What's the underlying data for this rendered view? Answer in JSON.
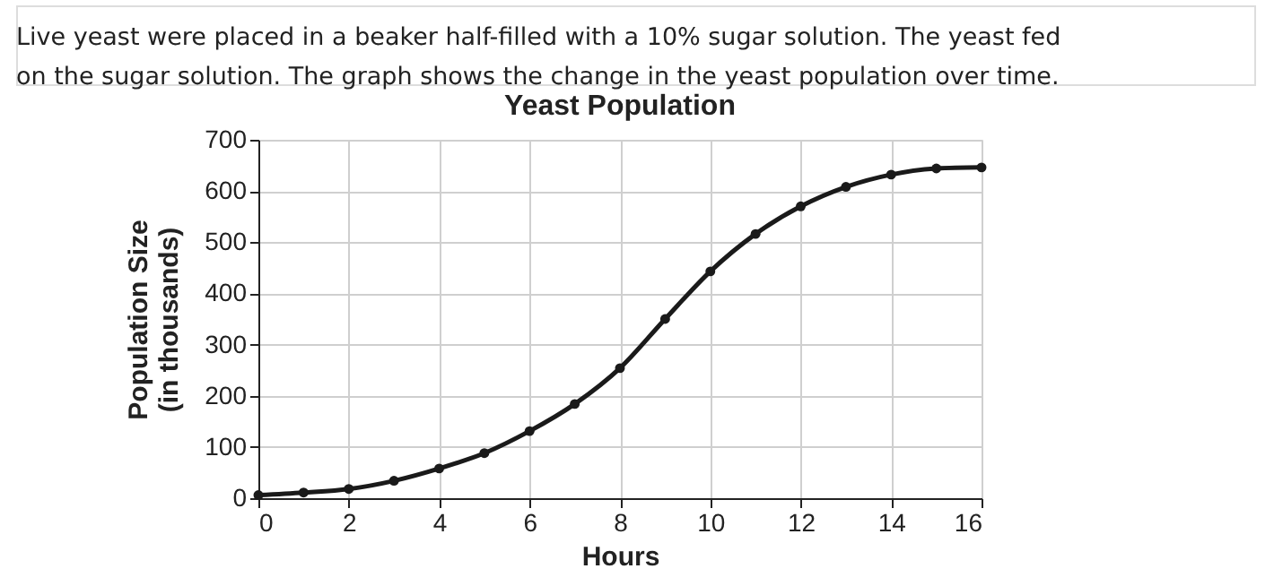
{
  "chart_data": {
    "type": "line",
    "title": "Yeast Population",
    "annotations": [
      "Live yeast were placed in a beaker half-filled with a 10% sugar solution. The yeast fed on the sugar solution. The graph shows the change in the yeast population over time."
    ],
    "xlabel": "Hours",
    "ylabel": "Population Size\n(in thousands)",
    "x": [
      0,
      1,
      2,
      3,
      4,
      5,
      6,
      7,
      8,
      9,
      10,
      11,
      12,
      13,
      14,
      15,
      16
    ],
    "series": [
      {
        "color": "#1a1a1a",
        "values": [
          6,
          11,
          18,
          34,
          58,
          88,
          131,
          184,
          254,
          350,
          443,
          516,
          570,
          608,
          632,
          644,
          646
        ]
      }
    ],
    "xlim": [
      0,
      16
    ],
    "xticks": [
      0,
      2,
      4,
      6,
      8,
      10,
      12,
      14,
      16
    ],
    "ylim": [
      0,
      700
    ],
    "yticks": [
      0,
      100,
      200,
      300,
      400,
      500,
      600,
      700
    ],
    "grid": true,
    "marker": "circle",
    "line_style": "solid"
  }
}
